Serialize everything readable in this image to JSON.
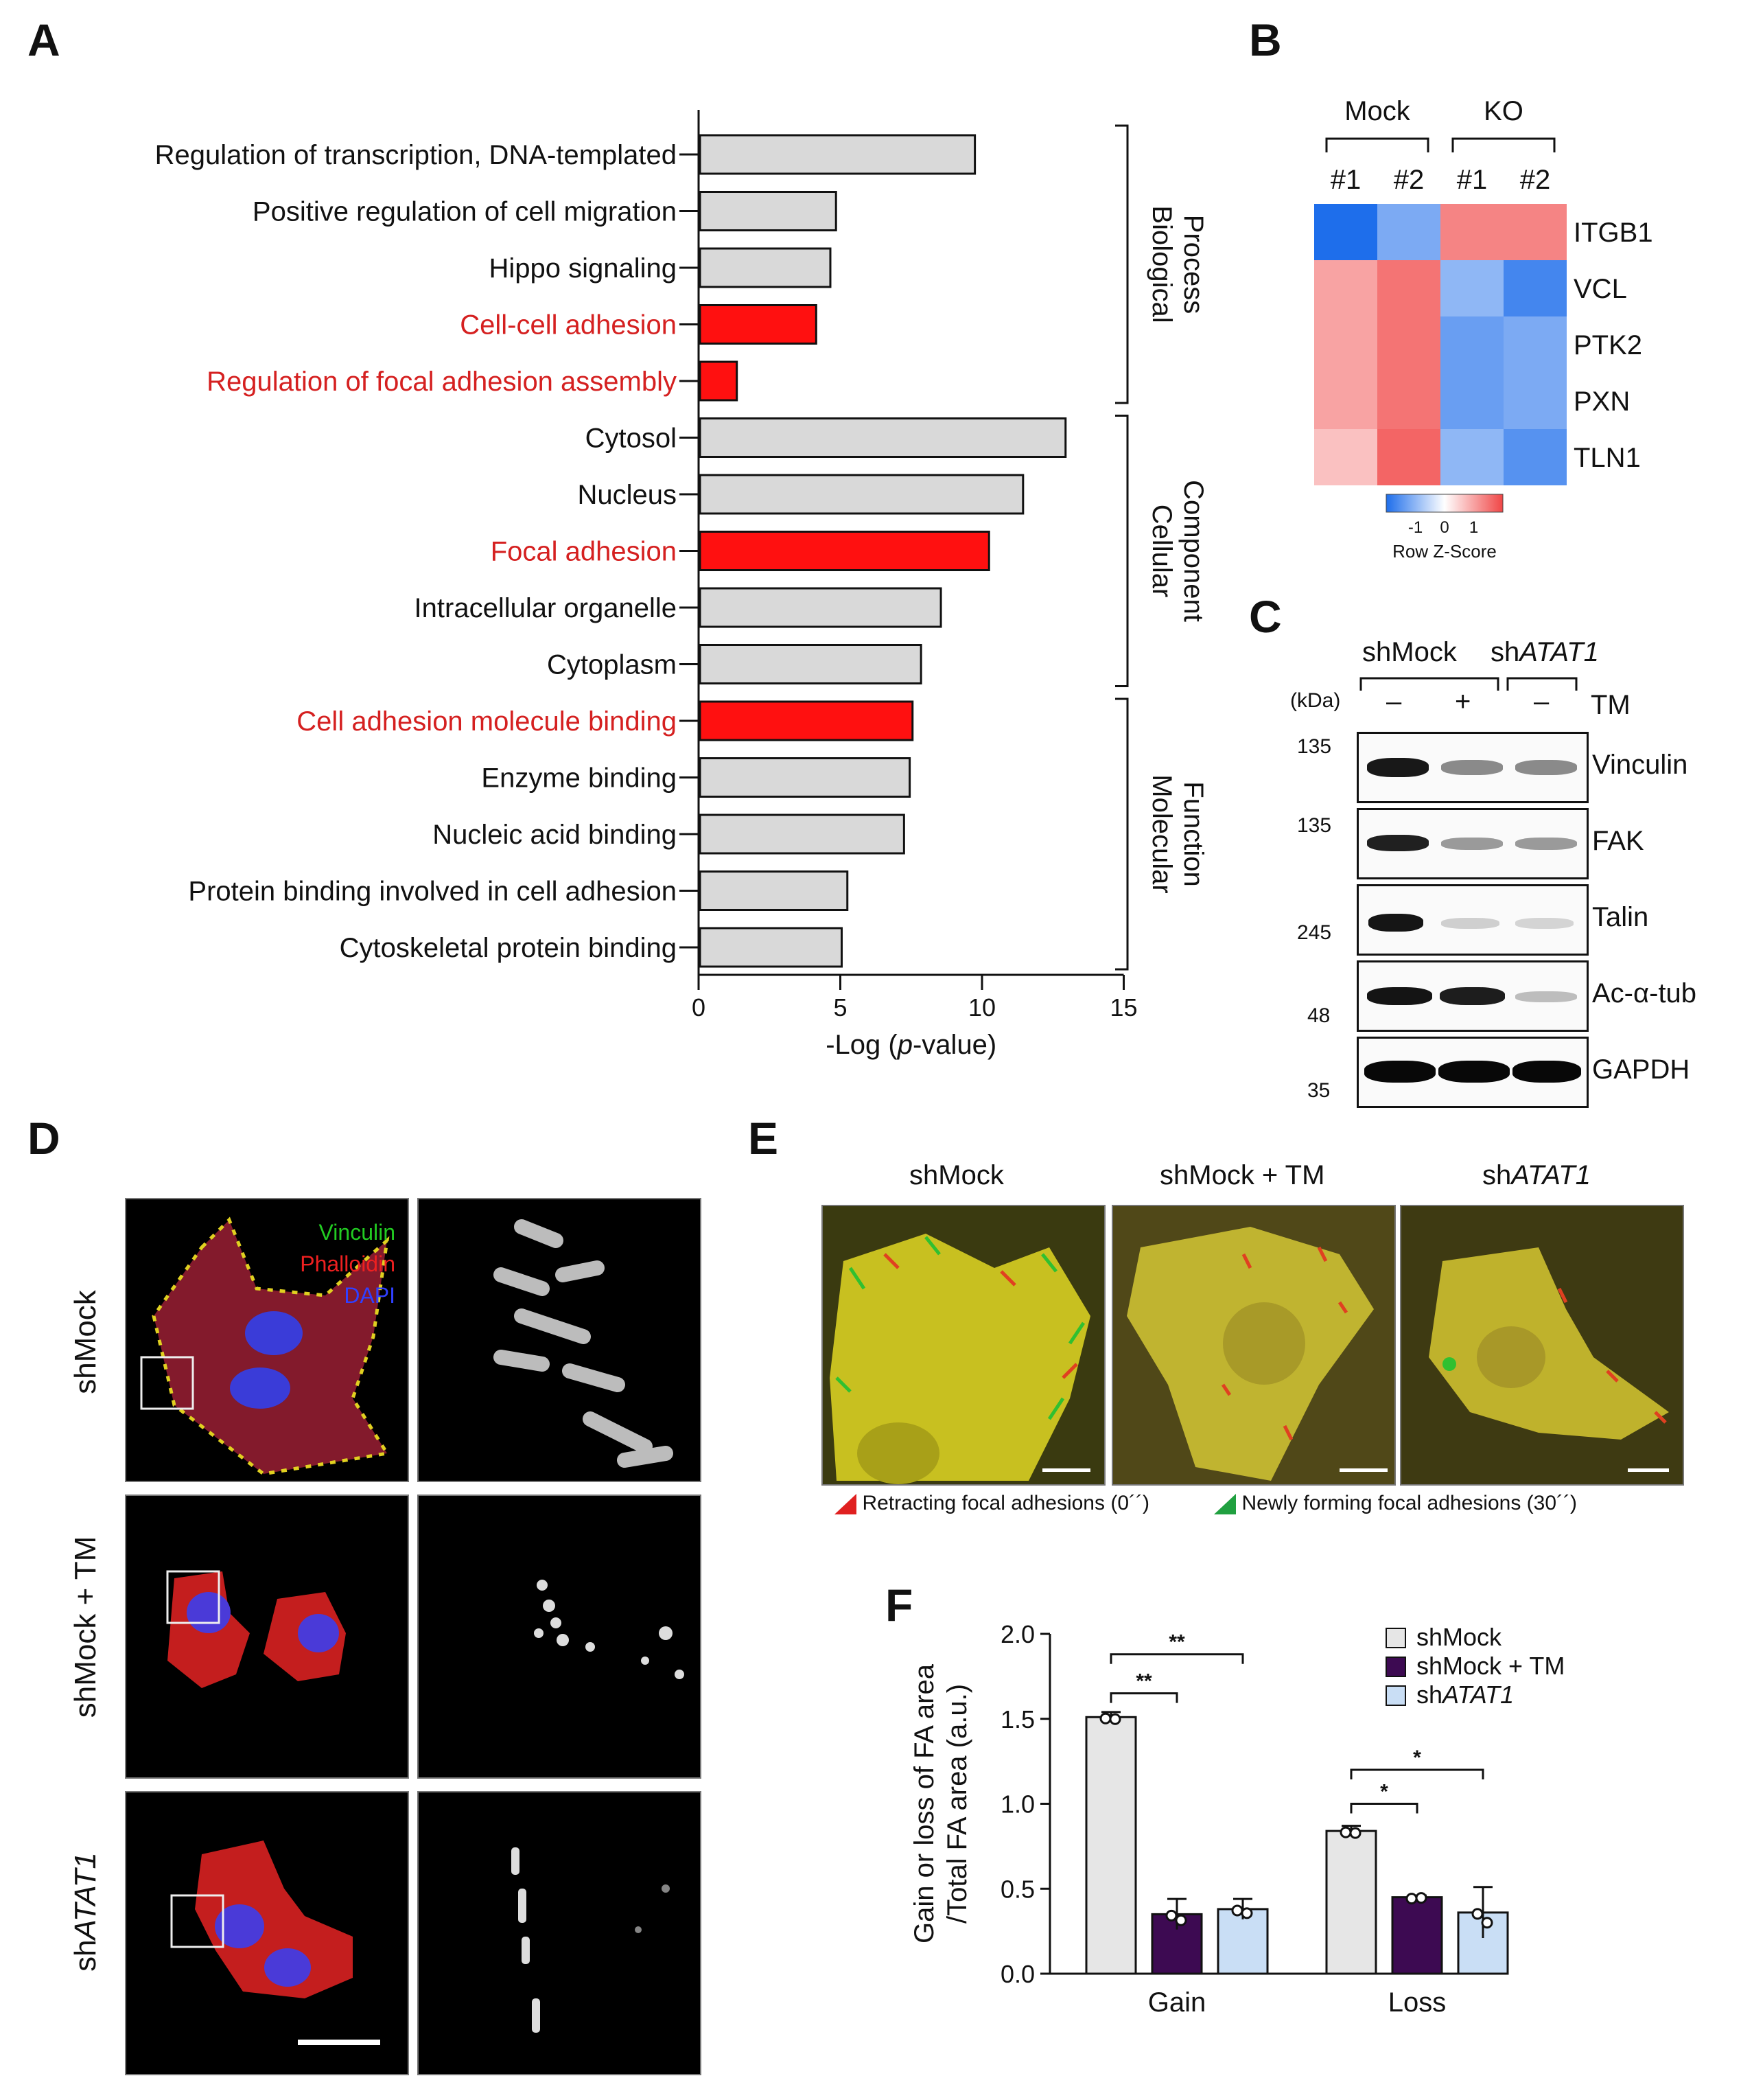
{
  "panels": {
    "A": "A",
    "B": "B",
    "C": "C",
    "D": "D",
    "E": "E",
    "F": "F"
  },
  "panelA": {
    "chart_data": {
      "type": "bar",
      "orientation": "horizontal",
      "categories": [
        "Regulation of transcription, DNA-templated",
        "Positive regulation of cell migration",
        "Hippo signaling",
        "Cell-cell adhesion",
        "Regulation of focal adhesion assembly",
        "Cytosol",
        "Nucleus",
        "Focal adhesion",
        "Intracellular organelle",
        "Cytoplasm",
        "Cell adhesion molecule binding",
        "Enzyme binding",
        "Nucleic acid binding",
        "Protein binding involved in cell adhesion",
        "Cytoskeletal protein binding"
      ],
      "values": [
        9.7,
        4.8,
        4.6,
        4.1,
        1.3,
        12.9,
        11.4,
        10.2,
        8.5,
        7.8,
        7.5,
        7.4,
        7.2,
        5.2,
        5.0
      ],
      "highlighted": [
        false,
        false,
        false,
        true,
        true,
        false,
        false,
        true,
        false,
        false,
        true,
        false,
        false,
        false,
        false
      ],
      "xlabel_pre": "-Log (",
      "xlabel_italic": "p",
      "xlabel_post": "-value)",
      "xlim": [
        0,
        15
      ],
      "xticks": [
        "0",
        "5",
        "10",
        "15"
      ],
      "groups": [
        {
          "label_lines": [
            "Biological",
            "Process"
          ]
        },
        {
          "label_lines": [
            "Cellular",
            "Component"
          ]
        },
        {
          "label_lines": [
            "Molecular",
            "Function"
          ]
        }
      ],
      "colors": {
        "highlight": "#ff1010",
        "normal": "#d9d9d9",
        "highlight_text": "#d52020"
      }
    }
  },
  "panelB": {
    "chart_data": {
      "type": "heatmap",
      "groups": [
        "Mock",
        "KO"
      ],
      "columns": [
        "#1",
        "#2",
        "#1",
        "#2"
      ],
      "rows": [
        "ITGB1",
        "VCL",
        "PTK2",
        "PXN",
        "TLN1"
      ],
      "values": [
        [
          -1.2,
          -0.7,
          0.8,
          0.8
        ],
        [
          0.6,
          0.9,
          -0.6,
          -1.0
        ],
        [
          0.6,
          0.9,
          -0.8,
          -0.7
        ],
        [
          0.6,
          0.9,
          -0.8,
          -0.7
        ],
        [
          0.4,
          1.0,
          -0.6,
          -0.9
        ]
      ],
      "legend_ticks": [
        "-1",
        "0",
        "1"
      ],
      "legend_label": "Row Z-Score"
    }
  },
  "panelC": {
    "groups": [
      {
        "pre": "shMock",
        "it": ""
      },
      {
        "pre": "sh",
        "it": "ATAT1"
      }
    ],
    "unit": "(kDa)",
    "treatment_label": "TM",
    "treatments": [
      "–",
      "+",
      "–"
    ],
    "blots": [
      {
        "protein": "Vinculin",
        "marker": "135"
      },
      {
        "protein": "FAK",
        "marker": "135"
      },
      {
        "protein": "Talin",
        "marker": "245"
      },
      {
        "protein": "Ac-α-tub",
        "marker": "48"
      },
      {
        "protein": "GAPDH",
        "marker": "35"
      }
    ]
  },
  "panelD": {
    "rows": [
      {
        "pre": "shMock",
        "it": ""
      },
      {
        "pre": "shMock + TM",
        "it": ""
      },
      {
        "pre": "sh",
        "it": "ATAT1"
      }
    ],
    "stains": [
      "Vinculin",
      "Phalloidin",
      "DAPI"
    ],
    "colors": {
      "Vinculin": "#22cc22",
      "Phalloidin": "#ee2020",
      "DAPI": "#3040ff"
    }
  },
  "panelE": {
    "columns": [
      {
        "pre": "shMock",
        "it": ""
      },
      {
        "pre": "shMock + TM",
        "it": ""
      },
      {
        "pre": "sh",
        "it": "ATAT1"
      }
    ],
    "legend": [
      {
        "label": "Retracting focal adhesions (0´´)",
        "color": "#e02020"
      },
      {
        "label": "Newly forming focal adhesions (30´´)",
        "color": "#20a040"
      }
    ]
  },
  "panelF": {
    "chart_data": {
      "type": "bar",
      "categories": [
        "Gain",
        "Loss"
      ],
      "series": [
        {
          "name": "shMock",
          "values": [
            1.51,
            0.84
          ],
          "error": [
            0.03,
            0.03
          ],
          "color": "#e6e6e6"
        },
        {
          "name": "shMock + TM",
          "values": [
            0.35,
            0.45
          ],
          "error": [
            0.09,
            0.01
          ],
          "color": "#3d0a52"
        },
        {
          "name": "shATAT1",
          "values": [
            0.38,
            0.36
          ],
          "error": [
            0.06,
            0.15
          ],
          "color": "#c9def5"
        }
      ],
      "legend_display": [
        {
          "pre": "shMock",
          "it": ""
        },
        {
          "pre": "shMock + TM",
          "it": ""
        },
        {
          "pre": "sh",
          "it": "ATAT1"
        }
      ],
      "ylabel_line1": "Gain or loss of FA area",
      "ylabel_line2": "/Total FA area (a.u.)",
      "ylim": [
        0,
        2.0
      ],
      "yticks": [
        "0.0",
        "0.5",
        "1.0",
        "1.5",
        "2.0"
      ],
      "significance": [
        {
          "category": "Gain",
          "compare": "shMock + TM",
          "label": "**"
        },
        {
          "category": "Gain",
          "compare": "shATAT1",
          "label": "**"
        },
        {
          "category": "Loss",
          "compare": "shMock + TM",
          "label": "*"
        },
        {
          "category": "Loss",
          "compare": "shATAT1",
          "label": "*"
        }
      ]
    }
  }
}
